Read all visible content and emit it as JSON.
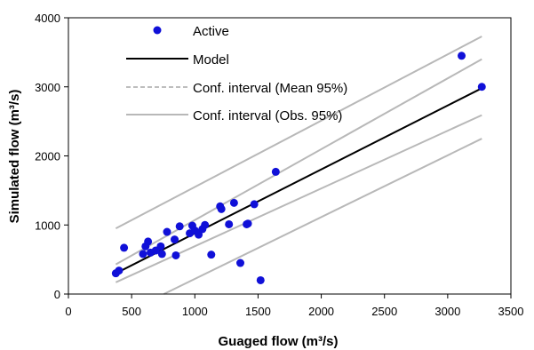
{
  "chart_data": {
    "type": "scatter",
    "xlabel": "Guaged flow  (m³/s)",
    "ylabel": "Simulated flow (m³/s)",
    "xlim": [
      0,
      3500
    ],
    "ylim": [
      0,
      4000
    ],
    "x_ticks": [
      "0",
      "500",
      "1000",
      "1500",
      "2000",
      "2500",
      "3000",
      "3500"
    ],
    "y_ticks": [
      "0",
      "1000",
      "2000",
      "3000",
      "4000"
    ],
    "x_tick_values": [
      0,
      500,
      1000,
      1500,
      2000,
      2500,
      3000,
      3500
    ],
    "y_tick_values": [
      0,
      1000,
      2000,
      3000,
      4000
    ],
    "grid": false,
    "legend_position": "top-left",
    "colors": {
      "points": "#1010d8",
      "model": "#000000",
      "confidence": "#b8b8b8"
    },
    "legend": [
      {
        "label": "Active",
        "style": "marker"
      },
      {
        "label": "Model",
        "style": "solid-black"
      },
      {
        "label": "Conf. interval (Mean 95%)",
        "style": "dashed-gray"
      },
      {
        "label": "Conf. interval (Obs. 95%)",
        "style": "solid-gray"
      }
    ],
    "points": [
      {
        "x": 375,
        "y": 300
      },
      {
        "x": 400,
        "y": 340
      },
      {
        "x": 440,
        "y": 670
      },
      {
        "x": 590,
        "y": 580
      },
      {
        "x": 610,
        "y": 690
      },
      {
        "x": 630,
        "y": 760
      },
      {
        "x": 650,
        "y": 600
      },
      {
        "x": 690,
        "y": 630
      },
      {
        "x": 730,
        "y": 690
      },
      {
        "x": 740,
        "y": 580
      },
      {
        "x": 780,
        "y": 900
      },
      {
        "x": 840,
        "y": 790
      },
      {
        "x": 850,
        "y": 560
      },
      {
        "x": 880,
        "y": 980
      },
      {
        "x": 960,
        "y": 880
      },
      {
        "x": 980,
        "y": 990
      },
      {
        "x": 1000,
        "y": 920
      },
      {
        "x": 1030,
        "y": 860
      },
      {
        "x": 1060,
        "y": 940
      },
      {
        "x": 1080,
        "y": 1000
      },
      {
        "x": 1130,
        "y": 570
      },
      {
        "x": 1200,
        "y": 1270
      },
      {
        "x": 1210,
        "y": 1230
      },
      {
        "x": 1270,
        "y": 1010
      },
      {
        "x": 1310,
        "y": 1320
      },
      {
        "x": 1360,
        "y": 450
      },
      {
        "x": 1410,
        "y": 1010
      },
      {
        "x": 1420,
        "y": 1020
      },
      {
        "x": 1470,
        "y": 1300
      },
      {
        "x": 1520,
        "y": 200
      },
      {
        "x": 1640,
        "y": 1770
      },
      {
        "x": 3110,
        "y": 3450
      },
      {
        "x": 3270,
        "y": 3000
      }
    ],
    "model_line": {
      "x": [
        375,
        3270
      ],
      "y": [
        300,
        2980
      ]
    },
    "mean_ci": {
      "upper": {
        "x": [
          375,
          3270
        ],
        "y": [
          430,
          3400
        ]
      },
      "lower": {
        "x": [
          375,
          3270
        ],
        "y": [
          170,
          2590
        ]
      }
    },
    "obs_ci": {
      "upper": {
        "x": [
          375,
          3270
        ],
        "y": [
          950,
          3730
        ]
      },
      "lower": {
        "x": [
          755,
          3270
        ],
        "y": [
          0,
          2250
        ]
      }
    }
  }
}
